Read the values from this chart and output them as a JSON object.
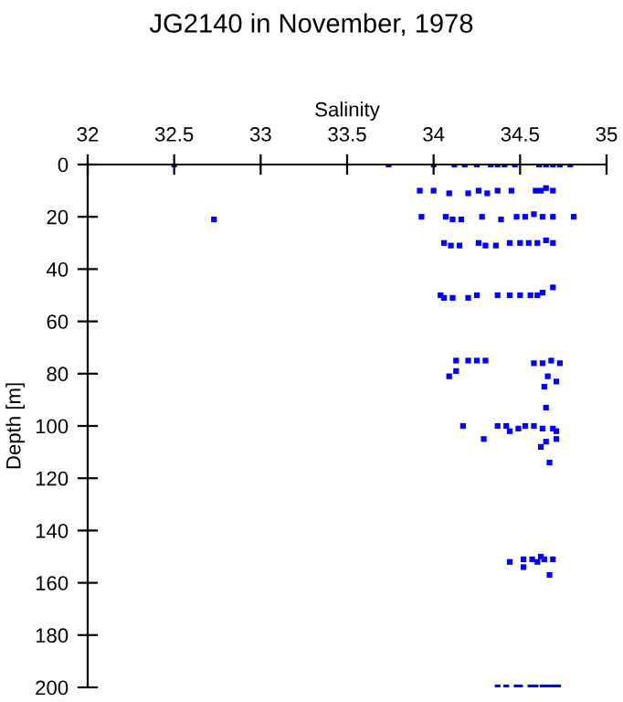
{
  "chart_data": {
    "type": "scatter",
    "title": "JG2140 in November, 1978",
    "xlabel": "Salinity",
    "ylabel": "Depth [m]",
    "xlim": [
      32,
      35
    ],
    "xticks": [
      32,
      32.5,
      33,
      33.5,
      34,
      34.5,
      35
    ],
    "ylim": [
      200,
      0
    ],
    "yticks": [
      0,
      20,
      40,
      60,
      80,
      100,
      120,
      140,
      160,
      180,
      200
    ],
    "grid": false,
    "marker": "square",
    "series": [
      {
        "color": "#0000ff",
        "x": [
          32.5,
          33.74,
          34.0,
          34.12,
          34.18,
          34.25,
          34.33,
          34.37,
          34.41,
          34.47,
          34.61,
          34.65,
          34.69,
          34.73,
          34.79,
          33.92,
          34.0,
          34.09,
          34.2,
          34.26,
          34.31,
          34.37,
          34.45,
          34.59,
          34.62,
          34.65,
          34.69,
          33.93,
          34.07,
          34.11,
          34.16,
          34.28,
          34.39,
          34.48,
          34.53,
          34.58,
          34.63,
          34.69,
          34.81,
          32.73,
          34.06,
          34.1,
          34.15,
          34.26,
          34.3,
          34.36,
          34.44,
          34.5,
          34.55,
          34.6,
          34.65,
          34.69,
          34.04,
          34.06,
          34.11,
          34.2,
          34.25,
          34.37,
          34.44,
          34.5,
          34.56,
          34.6,
          34.63,
          34.69,
          34.13,
          34.2,
          34.25,
          34.3,
          34.58,
          34.63,
          34.68,
          34.73,
          34.13,
          34.09,
          34.66,
          34.64,
          34.71,
          34.65,
          34.17,
          34.29,
          34.37,
          34.42,
          34.44,
          34.49,
          34.53,
          34.58,
          34.63,
          34.69,
          34.71,
          34.65,
          34.62,
          34.71,
          34.67,
          34.44,
          34.52,
          34.57,
          34.62,
          34.64,
          34.69,
          34.52,
          34.6,
          34.67,
          34.37,
          34.42,
          34.48,
          34.5,
          34.56,
          34.59,
          34.63,
          34.66,
          34.69,
          34.72
        ],
        "values": [
          0,
          0,
          0,
          0,
          0,
          0,
          0,
          0,
          0,
          0,
          0,
          0,
          0,
          0,
          0,
          10,
          10,
          11,
          11,
          10,
          11,
          10,
          10,
          10,
          10,
          9,
          10,
          20,
          20,
          21,
          21,
          20,
          21,
          20,
          20,
          19,
          20,
          20,
          20,
          21,
          30,
          31,
          31,
          30,
          31,
          31,
          30,
          30,
          30,
          30,
          29,
          30,
          50,
          51,
          51,
          51,
          50,
          50,
          50,
          50,
          50,
          50,
          49,
          47,
          75,
          75,
          75,
          75,
          76,
          76,
          75,
          76,
          79,
          81,
          81,
          85,
          83,
          93,
          100,
          105,
          100,
          100,
          102,
          101,
          100,
          100,
          101,
          101,
          102,
          106,
          108,
          105,
          114,
          152,
          151,
          151,
          150,
          151,
          151,
          154,
          152,
          157,
          200,
          200,
          200,
          200,
          200,
          200,
          200,
          200,
          200,
          200
        ]
      }
    ]
  }
}
